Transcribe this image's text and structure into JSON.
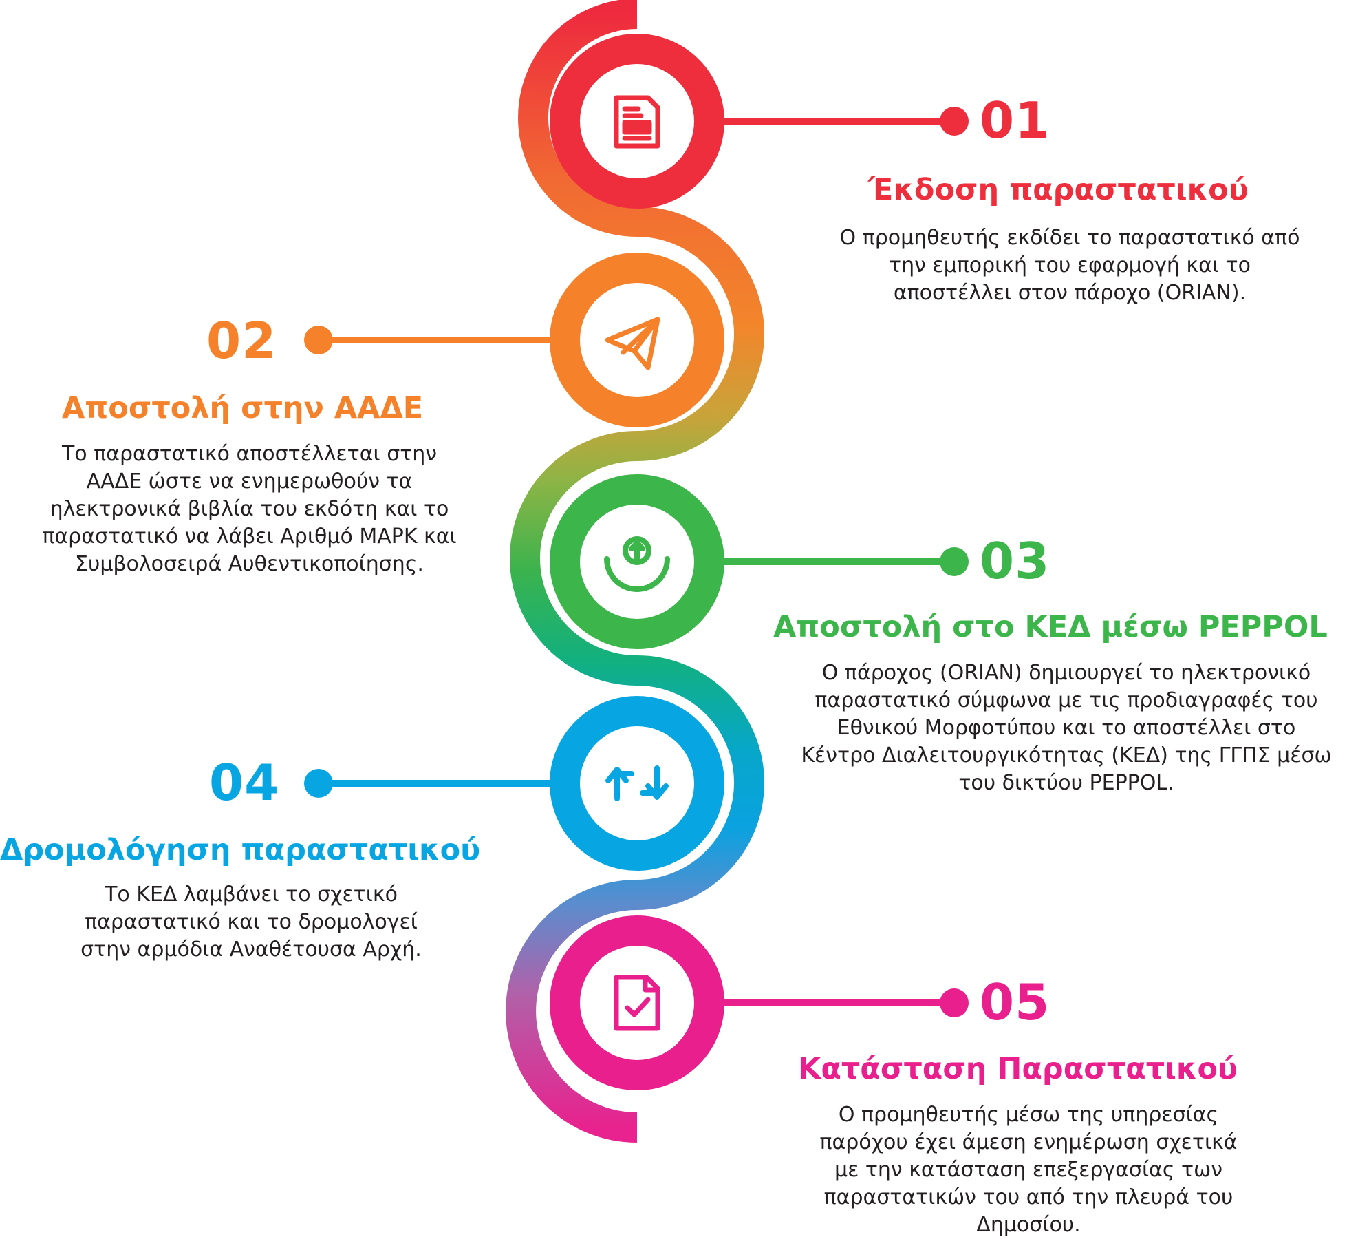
{
  "steps": [
    {
      "number": "01",
      "title": "Έκδοση παραστατικού",
      "description": "Ο προμηθευτής εκδίδει το παραστατικό από την εμπορική του εφαρμογή και το αποστέλλει στον πάροχο (ORIAN).",
      "color": "#ee2e3c",
      "icon": "document-icon"
    },
    {
      "number": "02",
      "title": "Αποστολή στην ΑΑΔΕ",
      "description": "Το παραστατικό αποστέλλεται στην ΑΑΔΕ ώστε να ενημερωθούν τα ηλεκτρονικά βιβλία του εκδότη και το παραστατικό να λάβει Αριθμό ΜΑΡΚ και Συμβολοσειρά Αυθεντικοποίησης.",
      "color": "#f5822a",
      "icon": "paper-plane-icon"
    },
    {
      "number": "03",
      "title": "Αποστολή στο ΚΕΔ μέσω PEPPOL",
      "description": "Ο πάροχος (ORIAN) δημιουργεί το ηλεκτρονικό παραστατικό σύμφωνα με τις προδιαγραφές του Εθνικού Μορφοτύπου και το αποστέλλει στο Κέντρο Διαλειτουργικότητας (ΚΕΔ) της ΓΓΠΣ μέσω του δικτύου PEPPOL.",
      "color": "#3cb54a",
      "icon": "upload-icon"
    },
    {
      "number": "04",
      "title": "Δρομολόγηση παραστατικού",
      "description": "Το ΚΕΔ λαμβάνει το σχετικό παραστατικό και το δρομολογεί στην αρμόδια Αναθέτουσα Αρχή.",
      "color": "#07a6e3",
      "icon": "transfer-arrows-icon"
    },
    {
      "number": "05",
      "title": "Κατάσταση Παραστατικού",
      "description": "Ο προμηθευτής μέσω της υπηρεσίας παρόχου έχει άμεση ενημέρωση σχετικά με την κατάσταση επεξεργασίας των παραστατικών του από την πλευρά του Δημοσίου.",
      "color": "#e91f8e",
      "icon": "document-check-icon"
    }
  ]
}
